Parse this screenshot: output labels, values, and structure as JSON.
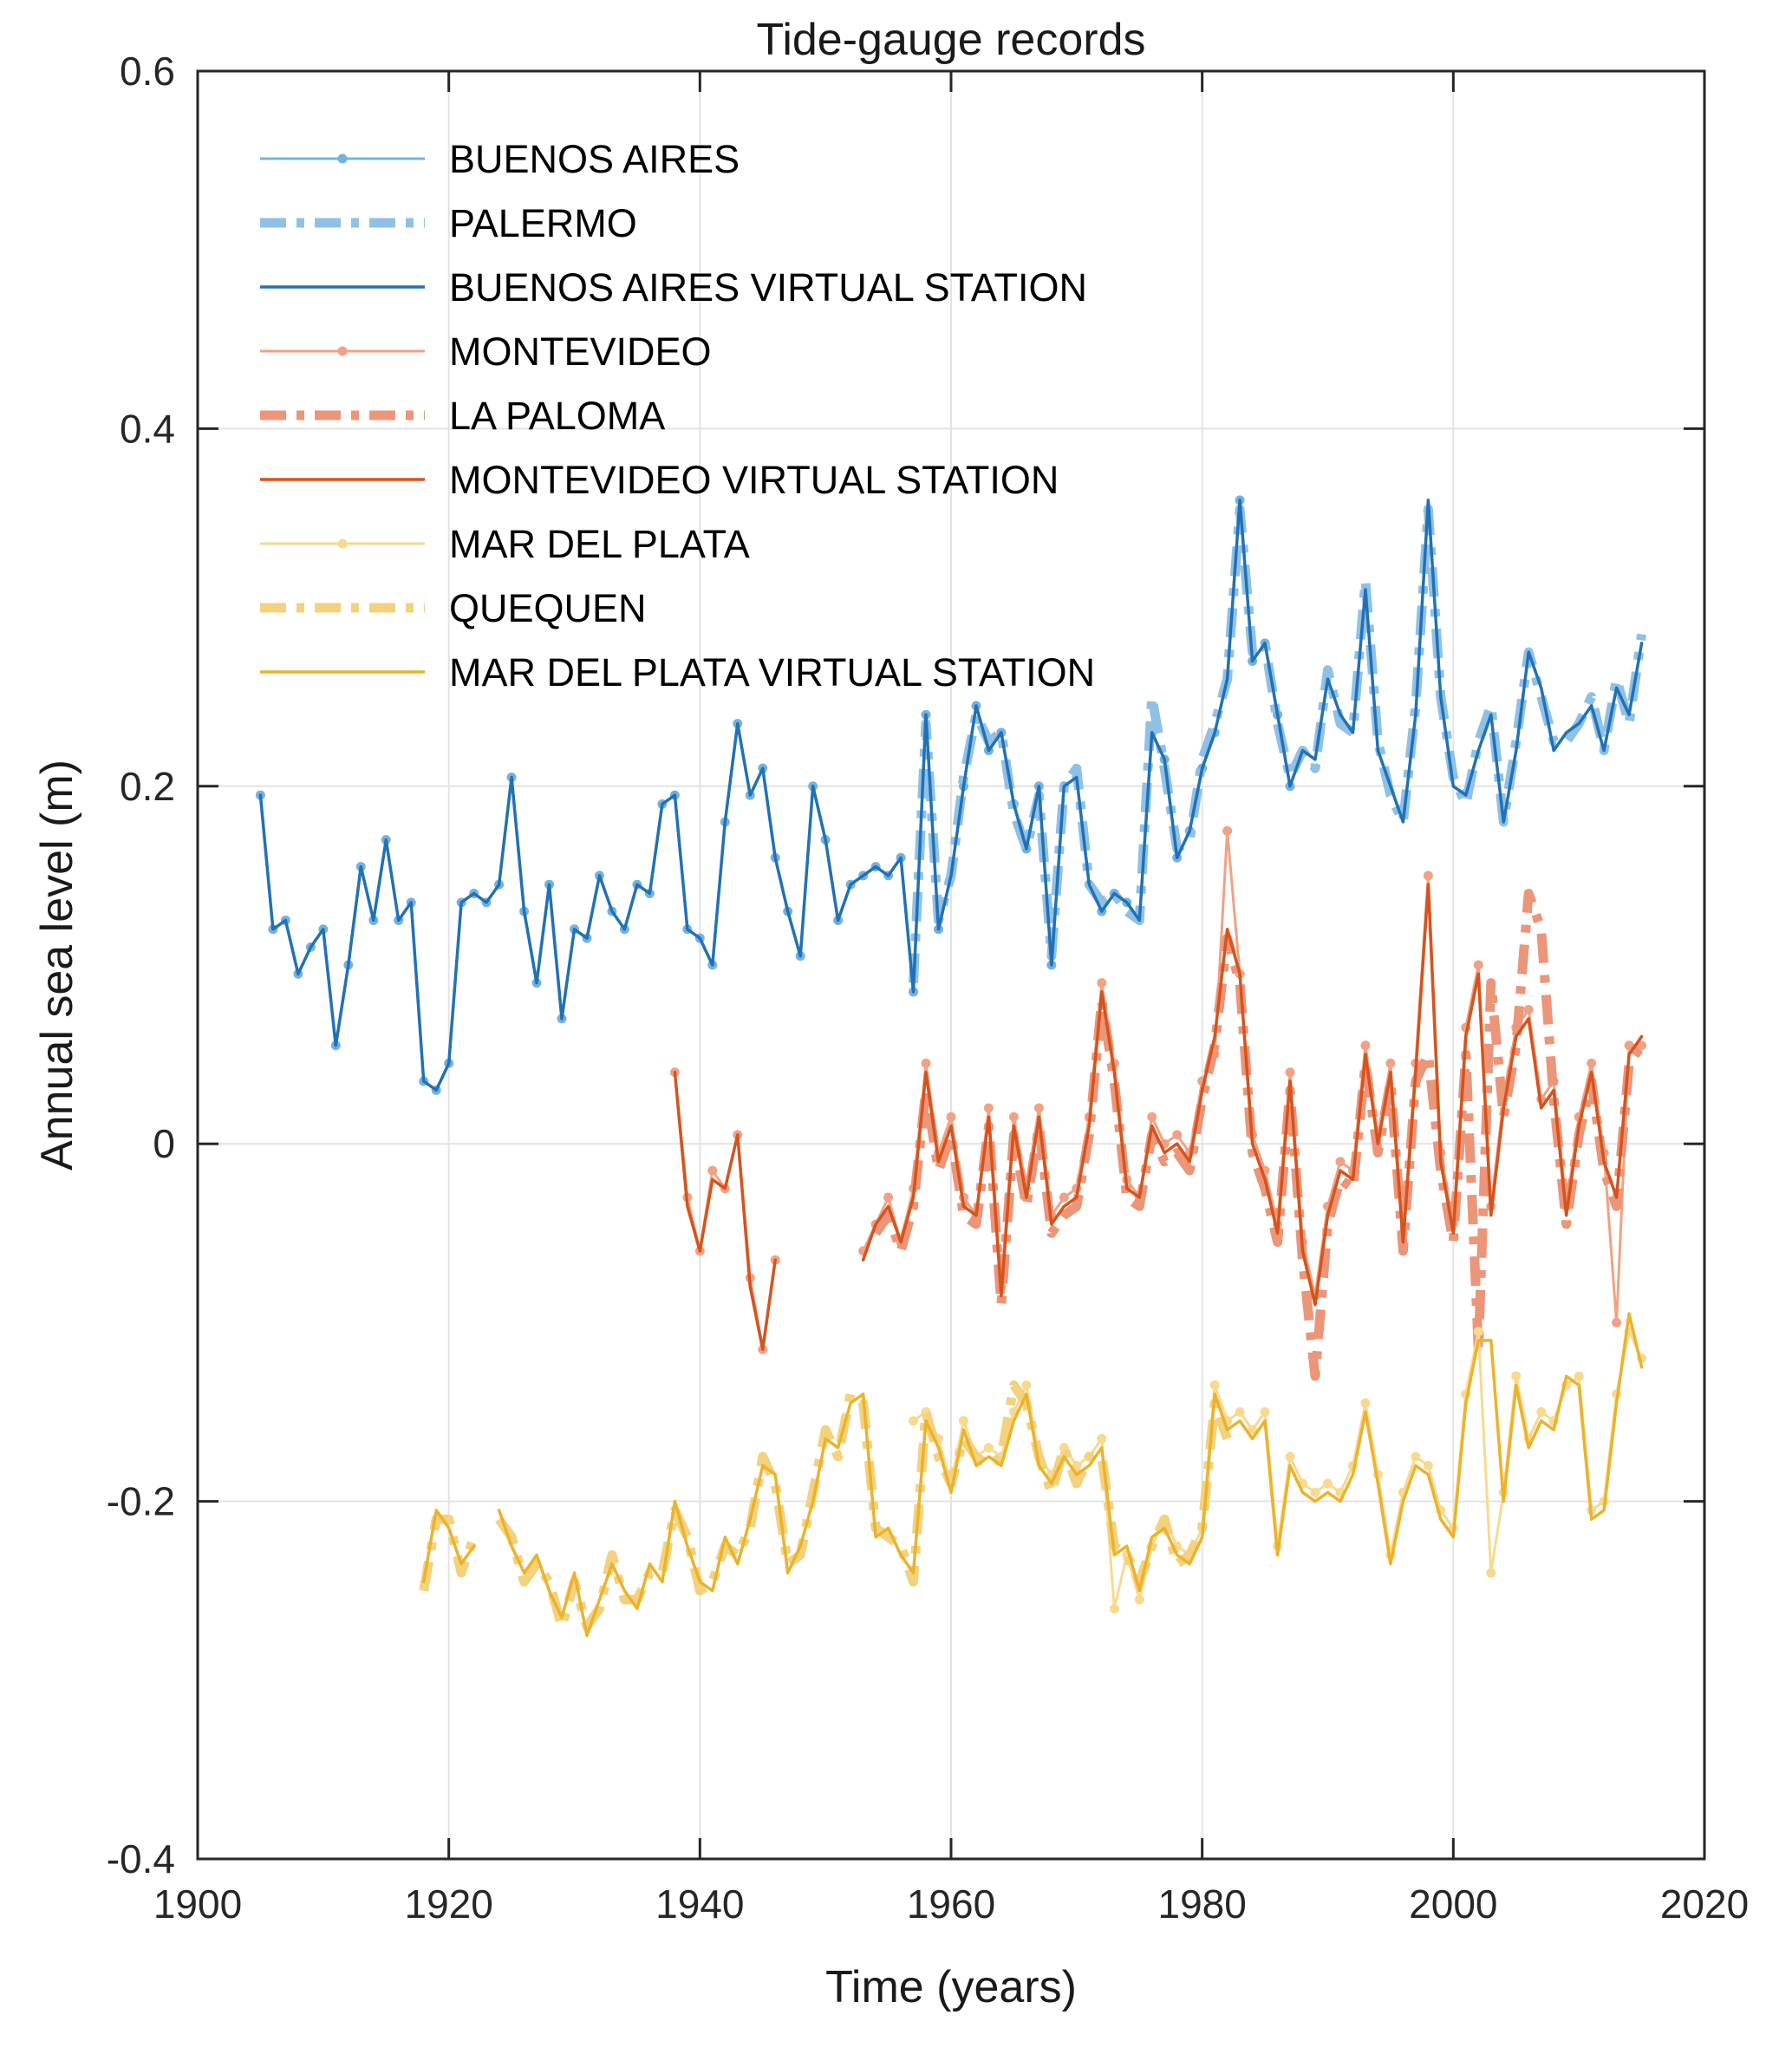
{
  "chart_data": {
    "type": "line",
    "title": "Tide-gauge records",
    "xlabel": "Time (years)",
    "ylabel": "Annual sea level (m)",
    "xlim": [
      1900,
      2020
    ],
    "ylim": [
      -0.4,
      0.6
    ],
    "xticks": [
      1900,
      1920,
      1940,
      1960,
      1980,
      2000,
      2020
    ],
    "xtick_labels": [
      "1900",
      "1920",
      "1940",
      "1960",
      "1980",
      "2000",
      "2020"
    ],
    "yticks": [
      -0.4,
      -0.2,
      0,
      0.2,
      0.4,
      0.6
    ],
    "ytick_labels": [
      "-0.4",
      "-0.2",
      "0",
      "0.2",
      "0.4",
      "0.6"
    ],
    "grid": true,
    "legend_position": "top-left",
    "axis_color": "#262626",
    "grid_color": "#e3e3e3",
    "series": [
      {
        "label": "BUENOS AIRES",
        "slug": "buenos-aires",
        "color": "#74b2df",
        "width": 3,
        "dash": null,
        "markers": true,
        "x0": 1905,
        "values": [
          0.195,
          0.12,
          0.125,
          0.095,
          0.11,
          0.12,
          0.055,
          0.1,
          0.155,
          0.125,
          0.17,
          0.125,
          0.135,
          0.035,
          0.03,
          0.045,
          0.135,
          0.14,
          0.135,
          0.145,
          0.205,
          0.13,
          0.09,
          0.145,
          0.07,
          0.12,
          0.115,
          0.15,
          0.13,
          0.12,
          0.145,
          0.14,
          0.19,
          0.195,
          0.12,
          0.115,
          0.1,
          0.18,
          0.235,
          0.195,
          0.21,
          0.16,
          0.13,
          0.105,
          0.2,
          0.17,
          0.125,
          0.145,
          0.15,
          0.155,
          0.15,
          0.16,
          0.085,
          0.24,
          0.12,
          0.15,
          0.2,
          0.245,
          0.22,
          0.23,
          0.19,
          0.165,
          0.2,
          0.1,
          0.2,
          0.205,
          0.145,
          0.13,
          0.14,
          0.135,
          0.125,
          0.23,
          0.215,
          0.16,
          0.175,
          0.21,
          0.23,
          0.26,
          0.36,
          0.27,
          0.28,
          0.24,
          0.2
        ]
      },
      {
        "label": "PALERMO",
        "slug": "palermo",
        "color": "#8fc1e6",
        "width": 11,
        "dash": "34 14 9 14",
        "markers": false,
        "x0": 1957,
        "values": [
          0.09,
          0.235,
          0.125,
          0.15,
          0.205,
          0.24,
          0.225,
          0.23,
          0.185,
          0.165,
          0.195,
          0.105,
          0.2,
          0.21,
          0.145,
          0.135,
          0.14,
          0.13,
          0.125,
          0.25,
          0.21,
          0.165,
          0.17,
          0.215,
          0.235,
          0.26,
          0.355,
          0.275,
          0.28,
          0.235,
          0.205,
          0.22,
          0.21,
          0.265,
          0.235,
          0.23,
          0.315,
          0.225,
          0.195,
          0.18,
          0.245,
          0.355,
          0.25,
          0.205,
          0.19,
          0.225,
          0.245,
          0.18,
          0.225,
          0.275,
          0.25,
          0.225,
          0.225,
          0.235,
          0.25,
          0.22,
          0.26,
          0.235,
          0.285
        ]
      },
      {
        "label": "BUENOS AIRES VIRTUAL STATION",
        "slug": "buenos-aires-virtual-station",
        "color": "#2171b5",
        "width": 3.5,
        "dash": null,
        "markers": false,
        "x0": 1905,
        "values": [
          0.195,
          0.12,
          0.125,
          0.095,
          0.11,
          0.12,
          0.055,
          0.1,
          0.155,
          0.125,
          0.17,
          0.125,
          0.135,
          0.035,
          0.03,
          0.045,
          0.135,
          0.14,
          0.135,
          0.145,
          0.205,
          0.13,
          0.09,
          0.145,
          0.07,
          0.12,
          0.115,
          0.15,
          0.13,
          0.12,
          0.145,
          0.14,
          0.19,
          0.195,
          0.12,
          0.115,
          0.1,
          0.18,
          0.235,
          0.195,
          0.21,
          0.16,
          0.13,
          0.105,
          0.2,
          0.17,
          0.125,
          0.145,
          0.15,
          0.155,
          0.15,
          0.16,
          0.085,
          0.24,
          0.12,
          0.15,
          0.2,
          0.245,
          0.22,
          0.23,
          0.19,
          0.165,
          0.2,
          0.1,
          0.2,
          0.205,
          0.145,
          0.13,
          0.14,
          0.135,
          0.125,
          0.23,
          0.215,
          0.16,
          0.175,
          0.21,
          0.23,
          0.26,
          0.36,
          0.27,
          0.28,
          0.24,
          0.2,
          0.22,
          0.215,
          0.26,
          0.24,
          0.23,
          0.31,
          0.22,
          0.2,
          0.18,
          0.24,
          0.36,
          0.25,
          0.2,
          0.195,
          0.22,
          0.24,
          0.18,
          0.22,
          0.275,
          0.255,
          0.22,
          0.23,
          0.235,
          0.245,
          0.22,
          0.255,
          0.24,
          0.28
        ]
      },
      {
        "label": "MONTEVIDEO",
        "slug": "montevideo",
        "color": "#f0a285",
        "width": 3,
        "dash": null,
        "markers": true,
        "x0": 1938,
        "values": [
          0.04,
          -0.03,
          -0.06,
          -0.015,
          -0.025,
          0.005,
          -0.075,
          -0.115,
          -0.065,
          null,
          null,
          null,
          null,
          null,
          null,
          -0.06,
          -0.045,
          -0.03,
          -0.055,
          -0.025,
          0.045,
          -0.005,
          0.015,
          -0.03,
          -0.04,
          0.02,
          -0.08,
          0.015,
          -0.025,
          0.02,
          -0.04,
          -0.03,
          -0.025,
          0.015,
          0.09,
          0.045,
          -0.02,
          -0.03,
          0.015,
          0.0,
          0.005,
          -0.005,
          0.035,
          0.05,
          0.175,
          0.095,
          0.005,
          -0.015,
          -0.045,
          0.04,
          -0.055,
          -0.085,
          -0.035,
          -0.01,
          -0.015,
          0.055,
          0.005,
          0.045,
          -0.05,
          0.045,
          0.15,
          -0.005,
          -0.045,
          0.065,
          0.1,
          -0.035,
          0.025,
          0.065,
          0.075,
          0.025,
          0.035,
          -0.035,
          0.015,
          0.045,
          -0.005,
          -0.1,
          0.055,
          0.055
        ]
      },
      {
        "label": "LA PALOMA",
        "slug": "la-paloma",
        "color": "#eb9579",
        "width": 11,
        "dash": "34 14 9 14",
        "markers": false,
        "x0": 1954,
        "values": [
          -0.05,
          -0.04,
          -0.06,
          -0.035,
          0.03,
          -0.015,
          0.005,
          -0.04,
          -0.045,
          0.01,
          -0.09,
          0.005,
          -0.035,
          0.01,
          -0.05,
          -0.04,
          -0.035,
          0.005,
          0.08,
          0.035,
          -0.03,
          -0.035,
          0.005,
          -0.01,
          -0.005,
          -0.015,
          0.025,
          0.055,
          0.115,
          0.09,
          -0.005,
          -0.025,
          -0.055,
          0.03,
          -0.065,
          -0.13,
          -0.045,
          -0.02,
          -0.025,
          0.045,
          -0.005,
          0.035,
          -0.06,
          0.035,
          0.05,
          -0.015,
          -0.055,
          0.05,
          -0.115,
          0.09,
          0.015,
          0.055,
          0.14,
          0.12,
          0.025,
          -0.045,
          0.005,
          0.035,
          -0.015,
          -0.035,
          0.045,
          0.055
        ]
      },
      {
        "label": "MONTEVIDEO VIRTUAL STATION",
        "slug": "montevideo-virtual-station",
        "color": "#d6531c",
        "width": 3.5,
        "dash": null,
        "markers": false,
        "x0": 1938,
        "values": [
          0.04,
          -0.035,
          -0.06,
          -0.02,
          -0.025,
          0.005,
          -0.08,
          -0.115,
          -0.065,
          null,
          null,
          null,
          null,
          null,
          null,
          -0.065,
          -0.045,
          -0.035,
          -0.055,
          -0.03,
          0.04,
          -0.01,
          0.01,
          -0.035,
          -0.04,
          0.015,
          -0.085,
          0.01,
          -0.03,
          0.015,
          -0.045,
          -0.035,
          -0.03,
          0.01,
          0.085,
          0.04,
          -0.025,
          -0.03,
          0.01,
          -0.005,
          0.0,
          -0.01,
          0.03,
          0.06,
          0.12,
          0.095,
          0.0,
          -0.02,
          -0.05,
          0.035,
          -0.06,
          -0.09,
          -0.04,
          -0.015,
          -0.02,
          0.05,
          0.0,
          0.04,
          -0.055,
          0.04,
          0.145,
          -0.01,
          -0.05,
          0.06,
          0.095,
          -0.04,
          0.02,
          0.06,
          0.07,
          0.02,
          0.03,
          -0.04,
          0.01,
          0.04,
          -0.01,
          -0.03,
          0.05,
          0.06
        ]
      },
      {
        "label": "MAR DEL PLATA",
        "slug": "mar-del-plata",
        "color": "#f8d98e",
        "width": 3,
        "dash": null,
        "markers": true,
        "x0": 1957,
        "values": [
          -0.155,
          -0.15,
          -0.165,
          -0.19,
          -0.155,
          -0.175,
          -0.17,
          -0.175,
          -0.15,
          -0.135,
          -0.175,
          -0.185,
          -0.17,
          -0.18,
          -0.175,
          -0.165,
          -0.26,
          -0.23,
          -0.255,
          -0.225,
          -0.21,
          -0.225,
          -0.23,
          -0.215,
          -0.135,
          -0.155,
          -0.15,
          -0.16,
          -0.15,
          -0.225,
          -0.175,
          -0.19,
          -0.195,
          -0.19,
          -0.195,
          -0.18,
          -0.145,
          -0.185,
          -0.23,
          -0.195,
          -0.175,
          -0.18,
          -0.205,
          -0.215,
          -0.14,
          -0.105,
          -0.24,
          -0.195,
          -0.13,
          -0.165,
          -0.15,
          -0.155,
          -0.135,
          -0.13,
          -0.205,
          -0.2,
          -0.14,
          -0.105,
          -0.12
        ]
      },
      {
        "label": "QUEQUEN",
        "slug": "quequen",
        "color": "#f3d27e",
        "width": 11,
        "dash": "34 14 9 14",
        "markers": false,
        "x0": 1918,
        "values": [
          -0.25,
          -0.21,
          -0.21,
          -0.24,
          -0.22,
          null,
          -0.21,
          -0.22,
          -0.245,
          -0.235,
          -0.245,
          -0.27,
          -0.245,
          -0.27,
          -0.26,
          -0.23,
          -0.255,
          -0.255,
          -0.24,
          -0.24,
          -0.205,
          -0.22,
          -0.25,
          -0.245,
          -0.225,
          -0.23,
          -0.215,
          -0.175,
          -0.19,
          -0.235,
          -0.23,
          -0.195,
          -0.16,
          -0.175,
          -0.14,
          -0.145,
          -0.215,
          -0.22,
          -0.225,
          -0.245,
          -0.15,
          -0.175,
          -0.19,
          -0.165,
          -0.175,
          -0.18,
          -0.175,
          -0.135,
          -0.145,
          -0.175,
          -0.195,
          -0.17,
          -0.19,
          -0.175,
          -0.175,
          -0.225,
          -0.23,
          -0.245,
          -0.225,
          -0.21,
          -0.235,
          -0.23,
          -0.215,
          -0.145,
          -0.165
        ]
      },
      {
        "label": "MAR DEL PLATA VIRTUAL STATION",
        "slug": "mar-del-plata-virtual-station",
        "color": "#ecb22a",
        "width": 3.5,
        "dash": null,
        "markers": false,
        "x0": 1918,
        "values": [
          -0.245,
          -0.205,
          -0.215,
          -0.235,
          -0.225,
          null,
          -0.205,
          -0.225,
          -0.24,
          -0.23,
          -0.25,
          -0.265,
          -0.24,
          -0.275,
          -0.255,
          -0.235,
          -0.25,
          -0.26,
          -0.235,
          -0.245,
          -0.2,
          -0.225,
          -0.245,
          -0.25,
          -0.22,
          -0.235,
          -0.21,
          -0.18,
          -0.185,
          -0.24,
          -0.225,
          -0.2,
          -0.165,
          -0.17,
          -0.145,
          -0.14,
          -0.22,
          -0.215,
          -0.23,
          -0.24,
          -0.155,
          -0.17,
          -0.195,
          -0.16,
          -0.18,
          -0.175,
          -0.18,
          -0.155,
          -0.14,
          -0.18,
          -0.19,
          -0.175,
          -0.185,
          -0.18,
          -0.17,
          -0.23,
          -0.225,
          -0.25,
          -0.22,
          -0.215,
          -0.23,
          -0.235,
          -0.22,
          -0.14,
          -0.16,
          -0.155,
          -0.165,
          -0.155,
          -0.23,
          -0.18,
          -0.195,
          -0.2,
          -0.195,
          -0.2,
          -0.185,
          -0.15,
          -0.19,
          -0.235,
          -0.2,
          -0.18,
          -0.185,
          -0.21,
          -0.22,
          -0.145,
          -0.11,
          -0.11,
          -0.2,
          -0.135,
          -0.17,
          -0.155,
          -0.16,
          -0.13,
          -0.135,
          -0.21,
          -0.205,
          -0.145,
          -0.095,
          -0.125
        ]
      }
    ]
  }
}
